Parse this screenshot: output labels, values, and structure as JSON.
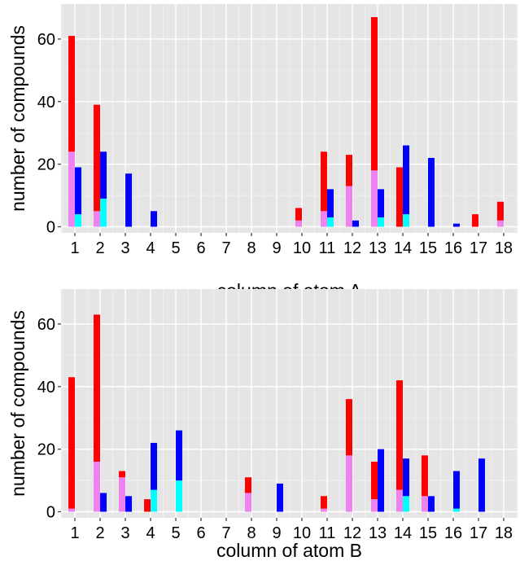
{
  "colors": {
    "panel_bg": "#e5e5e5",
    "grid_major": "#ffffff",
    "grid_minor": "#f2f2f2",
    "red": "#ff0000",
    "violet": "#ee82ee",
    "blue": "#0000ff",
    "cyan": "#00ffff"
  },
  "chart_data": [
    {
      "type": "bar",
      "stacked": true,
      "grouped": true,
      "title": "",
      "xlabel": "column of atom A",
      "ylabel": "number of compounds",
      "categories": [
        "1",
        "2",
        "3",
        "4",
        "5",
        "6",
        "7",
        "8",
        "9",
        "10",
        "11",
        "12",
        "13",
        "14",
        "15",
        "16",
        "17",
        "18"
      ],
      "yticks": [
        0,
        20,
        40,
        60
      ],
      "ylim": [
        0,
        70
      ],
      "grid": true,
      "legend": "none",
      "groups": [
        {
          "position": "left",
          "segments": [
            {
              "color": "violet",
              "values": [
                24,
                5,
                0,
                0,
                0,
                0,
                0,
                0,
                0,
                2,
                5,
                13,
                18,
                0,
                0,
                0,
                0,
                2
              ]
            },
            {
              "color": "red",
              "values": [
                37,
                34,
                0,
                0,
                0,
                0,
                0,
                0,
                0,
                4,
                19,
                10,
                49,
                19,
                0,
                0,
                4,
                6
              ]
            }
          ]
        },
        {
          "position": "right",
          "segments": [
            {
              "color": "cyan",
              "values": [
                4,
                9,
                0,
                0,
                0,
                0,
                0,
                0,
                0,
                0,
                3,
                0,
                3,
                4,
                0,
                0,
                0,
                0
              ]
            },
            {
              "color": "blue",
              "values": [
                15,
                15,
                17,
                5,
                0,
                0,
                0,
                0,
                0,
                0,
                9,
                2,
                9,
                22,
                22,
                1,
                0,
                0
              ]
            }
          ]
        }
      ]
    },
    {
      "type": "bar",
      "stacked": true,
      "grouped": true,
      "title": "",
      "xlabel": "column of atom B",
      "ylabel": "number of compounds",
      "categories": [
        "1",
        "2",
        "3",
        "4",
        "5",
        "6",
        "7",
        "8",
        "9",
        "10",
        "11",
        "12",
        "13",
        "14",
        "15",
        "16",
        "17",
        "18"
      ],
      "yticks": [
        0,
        20,
        40,
        60
      ],
      "ylim": [
        0,
        70
      ],
      "grid": true,
      "legend": "none",
      "groups": [
        {
          "position": "left",
          "segments": [
            {
              "color": "violet",
              "values": [
                1,
                16,
                11,
                0,
                0,
                0,
                0,
                6,
                0,
                0,
                1,
                18,
                4,
                7,
                5,
                0,
                0,
                0
              ]
            },
            {
              "color": "red",
              "values": [
                42,
                47,
                2,
                4,
                0,
                0,
                0,
                5,
                0,
                0,
                4,
                18,
                12,
                35,
                13,
                0,
                0,
                0
              ]
            }
          ]
        },
        {
          "position": "right",
          "segments": [
            {
              "color": "cyan",
              "values": [
                0,
                0,
                0,
                7,
                10,
                0,
                0,
                0,
                0,
                0,
                0,
                0,
                0,
                5,
                0,
                1,
                0,
                0
              ]
            },
            {
              "color": "blue",
              "values": [
                0,
                6,
                5,
                15,
                16,
                0,
                0,
                0,
                9,
                0,
                0,
                0,
                20,
                12,
                5,
                12,
                17,
                0
              ]
            }
          ]
        }
      ]
    }
  ]
}
